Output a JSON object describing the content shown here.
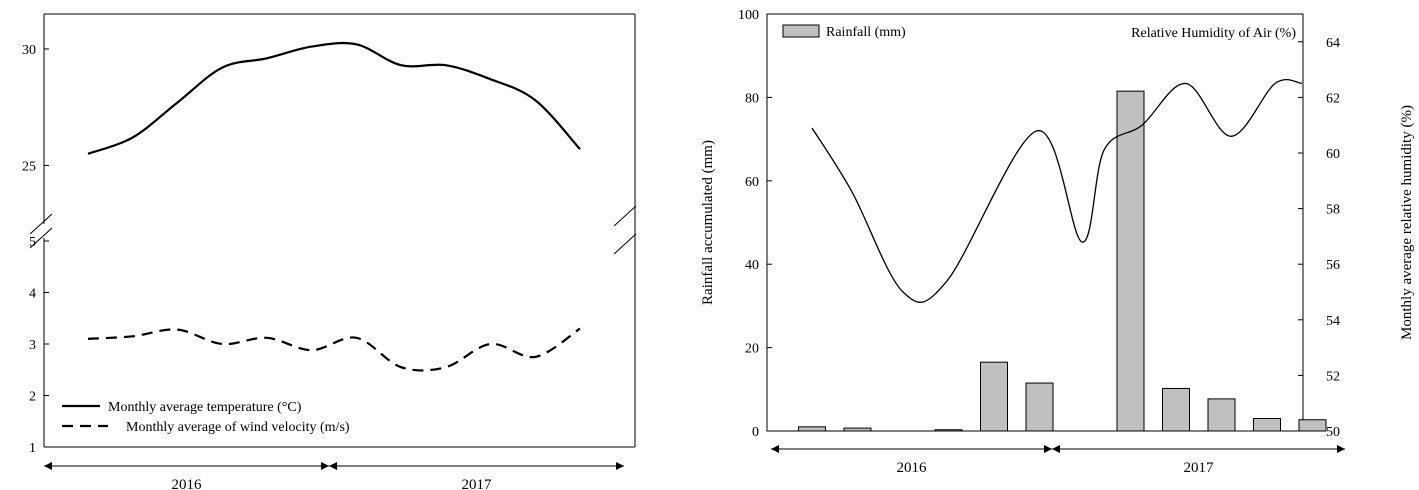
{
  "chart_data": [
    {
      "type": "line",
      "title": "",
      "y_segments": [
        {
          "name": "upper",
          "ylim": [
            23,
            31.5
          ],
          "ticks": [
            25,
            30
          ]
        },
        {
          "name": "lower",
          "ylim": [
            1,
            5
          ],
          "ticks": [
            1,
            2,
            3,
            4,
            5
          ]
        }
      ],
      "axis_break": true,
      "series": [
        {
          "name": "Monthly average temperature (°C)",
          "segment": "upper",
          "style": "solid",
          "x": [
            1,
            2,
            3,
            4,
            5,
            6,
            7,
            8,
            9,
            10,
            11,
            12
          ],
          "values": [
            25.5,
            26.2,
            27.7,
            29.2,
            29.6,
            30.1,
            30.2,
            29.3,
            29.3,
            28.7,
            27.8,
            25.7
          ]
        },
        {
          "name": "Monthly average of wind velocity (m/s)",
          "segment": "lower",
          "style": "dashed",
          "x": [
            1,
            2,
            3,
            4,
            5,
            6,
            7,
            8,
            9,
            10,
            11,
            12
          ],
          "values": [
            3.1,
            3.15,
            3.28,
            3.0,
            3.12,
            2.88,
            3.12,
            2.55,
            2.55,
            3.0,
            2.75,
            3.3
          ]
        }
      ],
      "periods": [
        {
          "label": "2016",
          "from": 0.2,
          "to": 6.3
        },
        {
          "label": "2017",
          "from": 6.3,
          "to": 12.8
        }
      ],
      "legend_position": "bottom-left",
      "grid": false
    },
    {
      "type": "bar",
      "title": "",
      "ylabel": "Rainfall accumulated (mm)",
      "ylim": [
        0,
        100
      ],
      "yticks": [
        0,
        20,
        40,
        60,
        80,
        100
      ],
      "y2label": "Monthly average relative humidity (%)",
      "y2lim": [
        50,
        65
      ],
      "y2ticks": [
        50,
        52,
        54,
        56,
        58,
        60,
        62,
        64
      ],
      "series": [
        {
          "name": "Rainfall (mm)",
          "kind": "bar",
          "axis": "left",
          "x": [
            1,
            2,
            3,
            4,
            5,
            6,
            7,
            8,
            9,
            10,
            11,
            12,
            13
          ],
          "values": [
            1.0,
            0.7,
            0.0,
            0.3,
            16.5,
            11.5,
            0.0,
            81.5,
            10.2,
            7.7,
            3.0,
            2.7,
            0.0
          ]
        },
        {
          "name": "Relative Humidity of Air (%)",
          "kind": "line",
          "axis": "right",
          "x": [
            1,
            2,
            3,
            4,
            5,
            6,
            7,
            8,
            9,
            10,
            11,
            12
          ],
          "values": [
            60.9,
            58.6,
            55.0,
            55.4,
            60.8,
            56.8,
            60.1,
            61.0,
            62.5,
            60.6,
            62.5,
            62.5
          ]
        }
      ],
      "periods": [
        {
          "label": "2016",
          "from": 0.0,
          "to": 6.5
        },
        {
          "label": "2017",
          "from": 6.5,
          "to": 13.5
        }
      ],
      "legend_position": "top",
      "grid": false
    }
  ]
}
